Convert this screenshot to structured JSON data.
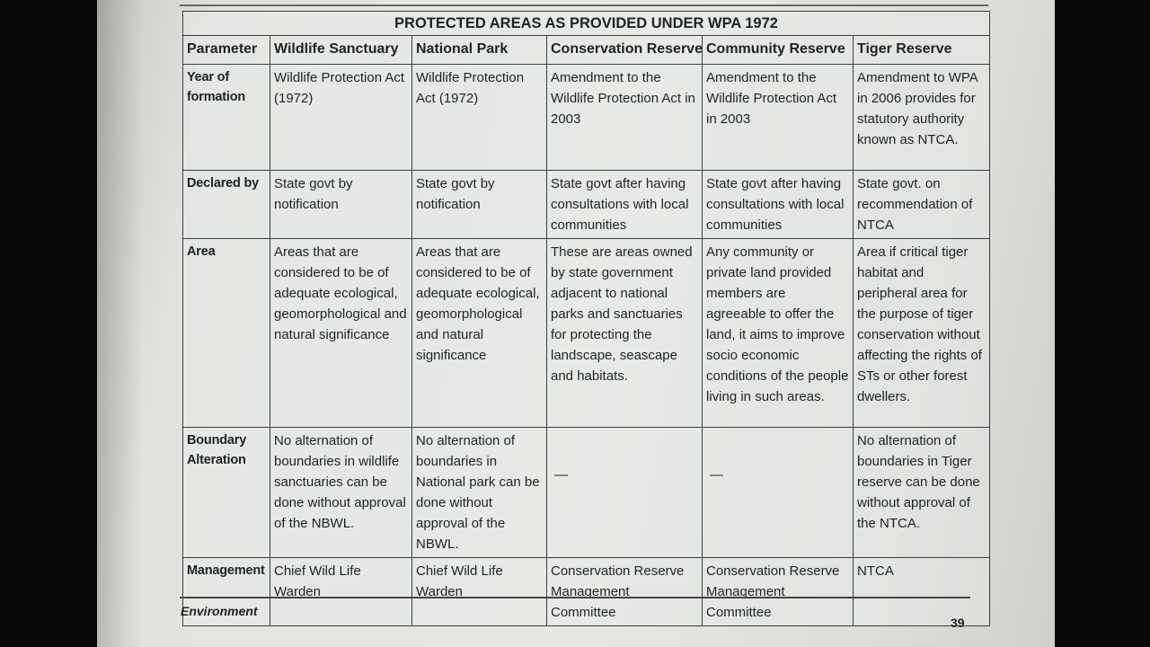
{
  "table": {
    "title": "PROTECTED AREAS AS PROVIDED UNDER WPA 1972",
    "columns": [
      "Parameter",
      "Wildlife Sanctuary",
      "National Park",
      "Conservation Reserve",
      "Community Reserve",
      "Tiger Reserve"
    ],
    "rows": [
      {
        "parameter": "Year of formation",
        "cells": [
          "Wildlife Protection Act (1972)",
          "Wildlife Protection Act (1972)",
          "Amendment to the Wildlife Protection Act in 2003",
          "Amendment to the Wildlife Protection Act in 2003",
          "Amendment to WPA in 2006 provides for statutory authority known as NTCA."
        ]
      },
      {
        "parameter": "Declared by",
        "cells": [
          "State govt by notification",
          "State govt by notification",
          "State govt after having consultations with local communities",
          "State govt after having consultations with local communities",
          "State govt. on recommendation of NTCA"
        ]
      },
      {
        "parameter": "Area",
        "cells": [
          "Areas that are considered to be of adequate ecological, geomorphological and natural significance",
          "Areas that are considered to be of adequate ecological, geomorphological and natural significance",
          "These are areas owned by state government adjacent to national parks and sanctuaries for protecting the landscape, seascape and habitats.",
          "Any community or private land provided members are agreeable to offer the land, it aims to improve socio economic conditions of the people living in such areas.",
          "Area if critical tiger habitat and peripheral area for the purpose of tiger conservation without affecting the rights of STs or other forest dwellers."
        ]
      },
      {
        "parameter": "Boundary Alteration",
        "cells": [
          "No alternation of boundaries in wildlife sanctuaries can be done without approval of the NBWL.",
          "No alternation of boundaries in National park can be done without approval of the NBWL.",
          "—",
          "—",
          "No alternation of boundaries in Tiger reserve can be done without approval of the NTCA."
        ]
      },
      {
        "parameter": "Management",
        "cells": [
          "Chief Wild Life Warden",
          "Chief Wild Life Warden",
          "Conservation Reserve Management Committee",
          "Conservation Reserve Management Committee",
          "NTCA"
        ]
      }
    ]
  },
  "footer": {
    "section": "Environment",
    "page_number": "39"
  }
}
